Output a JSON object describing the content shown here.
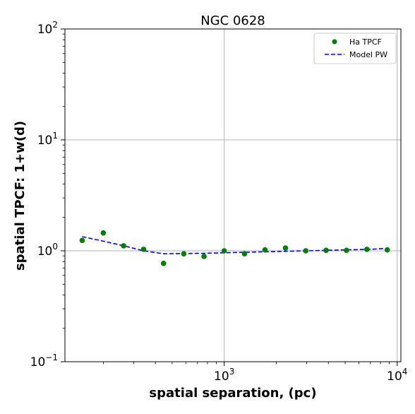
{
  "chart_data": {
    "type": "scatter",
    "title": "NGC 0628",
    "xlabel": "spatial separation, (pc)",
    "ylabel": "spatial TPCF: 1+w(d)",
    "xscale": "log",
    "yscale": "log",
    "xlim": [
      120,
      10500
    ],
    "ylim": [
      0.1,
      100
    ],
    "grid": true,
    "legend_position": "top-right",
    "x_ticks": [
      {
        "value": 1000,
        "base": "10",
        "exp": "3"
      },
      {
        "value": 10000,
        "base": "10",
        "exp": "4"
      }
    ],
    "y_ticks": [
      {
        "value": 0.1,
        "base": "10",
        "exp": "−1"
      },
      {
        "value": 1,
        "base": "10",
        "exp": "0"
      },
      {
        "value": 10,
        "base": "10",
        "exp": "1"
      },
      {
        "value": 100,
        "base": "10",
        "exp": "2"
      }
    ],
    "series": [
      {
        "name": "Ha TPCF",
        "kind": "points",
        "color": "#008000",
        "x": [
          151,
          200,
          262,
          342,
          446,
          584,
          764,
          1000,
          1310,
          1720,
          2260,
          2960,
          3880,
          5090,
          6680,
          8760
        ],
        "y": [
          1.24,
          1.45,
          1.11,
          1.03,
          0.77,
          0.94,
          0.89,
          1.0,
          0.94,
          1.02,
          1.06,
          1.0,
          1.01,
          1.01,
          1.03,
          1.02
        ]
      },
      {
        "name": "Model PW",
        "kind": "dashed-line",
        "color": "#0000ff",
        "x": [
          151,
          200,
          262,
          342,
          446,
          584,
          764,
          1000,
          1310,
          1720,
          2260,
          2960,
          3880,
          5090,
          6680,
          8760
        ],
        "y": [
          1.34,
          1.22,
          1.11,
          1.0,
          0.94,
          0.945,
          0.95,
          0.96,
          0.97,
          0.98,
          0.99,
          1.0,
          1.01,
          1.02,
          1.03,
          1.05
        ]
      }
    ]
  }
}
